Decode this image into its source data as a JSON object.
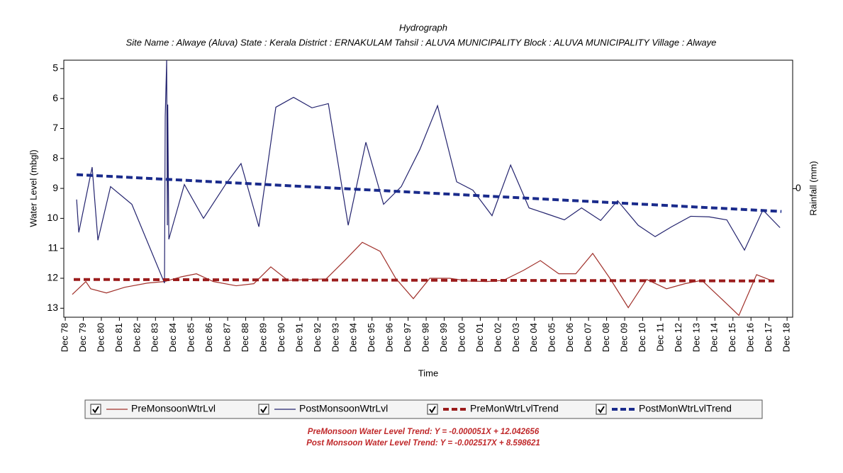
{
  "chart_data": {
    "type": "line",
    "title": "Hydrograph",
    "subtitle": "Site Name : Alwaye (Aluva)  State : Kerala District : ERNAKULAM  Tahsil : ALUVA MUNICIPALITY  Block : ALUVA MUNICIPALITY Village : Alwaye",
    "x_label": "Time",
    "y_label": "Water Level (mbgl)",
    "y2_label": "Rainfall (mm)",
    "y_inverted": true,
    "xlim": [
      1978.92,
      2019.31
    ],
    "xticks": [
      {
        "value": 1979,
        "label": "Dec 78"
      },
      {
        "value": 1980,
        "label": "Dec 79"
      },
      {
        "value": 1981,
        "label": "Dec 80"
      },
      {
        "value": 1982,
        "label": "Dec 81"
      },
      {
        "value": 1983,
        "label": "Dec 82"
      },
      {
        "value": 1984,
        "label": "Dec 83"
      },
      {
        "value": 1985,
        "label": "Dec 84"
      },
      {
        "value": 1986,
        "label": "Dec 85"
      },
      {
        "value": 1987,
        "label": "Dec 86"
      },
      {
        "value": 1988,
        "label": "Dec 87"
      },
      {
        "value": 1989,
        "label": "Dec 88"
      },
      {
        "value": 1990,
        "label": "Dec 89"
      },
      {
        "value": 1991,
        "label": "Dec 90"
      },
      {
        "value": 1992,
        "label": "Dec 91"
      },
      {
        "value": 1993,
        "label": "Dec 92"
      },
      {
        "value": 1994,
        "label": "Dec 93"
      },
      {
        "value": 1995,
        "label": "Dec 94"
      },
      {
        "value": 1996,
        "label": "Dec 95"
      },
      {
        "value": 1997,
        "label": "Dec 96"
      },
      {
        "value": 1998,
        "label": "Dec 97"
      },
      {
        "value": 1999,
        "label": "Dec 98"
      },
      {
        "value": 2000,
        "label": "Dec 99"
      },
      {
        "value": 2001,
        "label": "Dec 00"
      },
      {
        "value": 2002,
        "label": "Dec 01"
      },
      {
        "value": 2003,
        "label": "Dec 02"
      },
      {
        "value": 2004,
        "label": "Dec 03"
      },
      {
        "value": 2005,
        "label": "Dec 04"
      },
      {
        "value": 2006,
        "label": "Dec 05"
      },
      {
        "value": 2007,
        "label": "Dec 06"
      },
      {
        "value": 2008,
        "label": "Dec 07"
      },
      {
        "value": 2009,
        "label": "Dec 08"
      },
      {
        "value": 2010,
        "label": "Dec 09"
      },
      {
        "value": 2011,
        "label": "Dec 10"
      },
      {
        "value": 2012,
        "label": "Dec 11"
      },
      {
        "value": 2013,
        "label": "Dec 12"
      },
      {
        "value": 2014,
        "label": "Dec 13"
      },
      {
        "value": 2015,
        "label": "Dec 14"
      },
      {
        "value": 2016,
        "label": "Dec 15"
      },
      {
        "value": 2017,
        "label": "Dec 16"
      },
      {
        "value": 2018,
        "label": "Dec 17"
      },
      {
        "value": 2019,
        "label": "Dec 18"
      }
    ],
    "ylim": [
      4.72,
      13.3
    ],
    "yticks": [
      5,
      6,
      7,
      8,
      9,
      10,
      11,
      12,
      13
    ],
    "y2lim": [
      -1,
      1
    ],
    "y2ticks": [
      0
    ],
    "series": [
      {
        "name": "PreMonsoonWtrLvl",
        "color": "#a0302a",
        "line_style": "solid",
        "x": [
          1979.39,
          1980.14,
          1980.41,
          1981.28,
          1982.3,
          1983.56,
          1984.5,
          1985.44,
          1986.27,
          1987.21,
          1988.47,
          1989.45,
          1990.39,
          1991.34,
          1992.44,
          1993.46,
          1994.48,
          1995.46,
          1996.45,
          1997.31,
          1998.29,
          1999.2,
          2000.3,
          2001.32,
          2002.34,
          2003.28,
          2004.38,
          2005.33,
          2006.35,
          2007.29,
          2008.23,
          2009.18,
          2010.2,
          2011.22,
          2012.32,
          2013.34,
          2014.28,
          2015.39,
          2016.33,
          2017.31,
          2018.29
        ],
        "values": [
          12.54,
          12.11,
          12.35,
          12.49,
          12.3,
          12.16,
          12.11,
          11.95,
          11.85,
          12.11,
          12.25,
          12.18,
          11.62,
          12.07,
          12.04,
          12.02,
          11.41,
          10.8,
          11.1,
          12.0,
          12.68,
          12.0,
          12.0,
          12.09,
          12.11,
          12.07,
          11.74,
          11.41,
          11.85,
          11.85,
          11.17,
          12.0,
          12.98,
          12.04,
          12.35,
          12.18,
          12.07,
          12.7,
          13.24,
          11.88,
          12.11
        ]
      },
      {
        "name": "PostMonsoonWtrLvl",
        "color": "#23236e",
        "line_style": "solid",
        "x": [
          1979.63,
          1979.75,
          1980.49,
          1980.81,
          1981.51,
          1982.69,
          1984.5,
          1984.54,
          1984.62,
          1984.66,
          1984.68,
          1984.74,
          1985.6,
          1986.66,
          1987.88,
          1988.74,
          1989.73,
          1990.67,
          1991.65,
          1992.67,
          1993.58,
          1994.68,
          1995.66,
          1996.64,
          1997.62,
          1998.65,
          1999.63,
          2000.69,
          2001.59,
          2002.65,
          2003.68,
          2004.7,
          2005.64,
          2006.66,
          2007.61,
          2008.67,
          2009.61,
          2010.75,
          2011.69,
          2012.6,
          2013.66,
          2014.68,
          2015.66,
          2016.64,
          2017.66,
          2018.61
        ],
        "values": [
          9.37,
          10.47,
          8.29,
          10.73,
          8.94,
          9.53,
          12.16,
          6.6,
          4.72,
          10.23,
          6.2,
          10.7,
          8.87,
          10.0,
          8.87,
          8.17,
          10.28,
          6.29,
          5.96,
          6.31,
          6.17,
          10.23,
          7.46,
          9.53,
          8.94,
          7.7,
          6.24,
          8.78,
          9.06,
          9.91,
          8.22,
          9.65,
          9.84,
          10.05,
          9.65,
          10.07,
          9.41,
          10.23,
          10.61,
          10.28,
          9.93,
          9.95,
          10.05,
          11.06,
          9.72,
          10.31
        ]
      },
      {
        "name": "PreMonWtrLvlTrend",
        "color": "#9b1c1c",
        "line_style": "dashed",
        "x": [
          1979.47,
          2018.29
        ],
        "values": [
          12.04,
          12.09
        ]
      },
      {
        "name": "PostMonWtrLvlTrend",
        "color": "#1a2b8c",
        "line_style": "dashed",
        "x": [
          1979.63,
          2018.69
        ],
        "values": [
          8.54,
          9.77
        ]
      }
    ],
    "annotations": [
      "PreMonsoon Water Level Trend: Y = -0.000051X + 12.042656",
      "Post Monsoon Water Level Trend: Y = -0.002517X + 8.598621"
    ]
  }
}
